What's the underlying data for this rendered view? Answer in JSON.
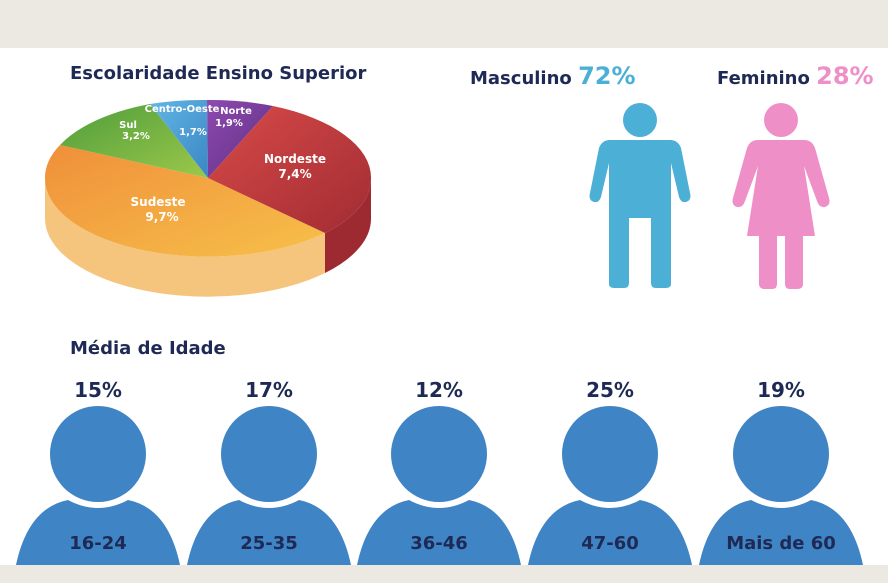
{
  "chart_data": [
    {
      "type": "pie",
      "title": "Escolaridade Ensino Superior",
      "slices": [
        {
          "label": "Norte",
          "value_label": "1,9%",
          "value": 1.9,
          "color": "#7b3f98"
        },
        {
          "label": "Nordeste",
          "value_label": "7,4%",
          "value": 7.4,
          "color": "#c0393d"
        },
        {
          "label": "Sudeste",
          "value_label": "9,7%",
          "value": 9.7,
          "color": "#f2a63a"
        },
        {
          "label": "Sul",
          "value_label": "3,2%",
          "value": 3.2,
          "color": "#6cb043"
        },
        {
          "label": "Centro-Oeste",
          "value_label": "1,7%",
          "value": 1.7,
          "color": "#4aa3d8"
        }
      ]
    },
    {
      "type": "bar",
      "title": "Média de Idade",
      "categories": [
        "16-24",
        "25-35",
        "36-46",
        "47-60",
        "Mais de 60"
      ],
      "value_labels": [
        "15%",
        "17%",
        "12%",
        "25%",
        "19%"
      ],
      "values": [
        15,
        17,
        12,
        25,
        19
      ]
    }
  ],
  "gender": {
    "male": {
      "label": "Masculino",
      "pct_label": "72%",
      "value": 72,
      "color": "#4bafd6"
    },
    "female": {
      "label": "Feminino",
      "pct_label": "28%",
      "value": 28,
      "color": "#ee8fc8"
    }
  },
  "colors": {
    "text": "#1e2a55",
    "person_icon": "#3f84c4",
    "background": "#ffffff",
    "frame": "#ece9e3"
  }
}
